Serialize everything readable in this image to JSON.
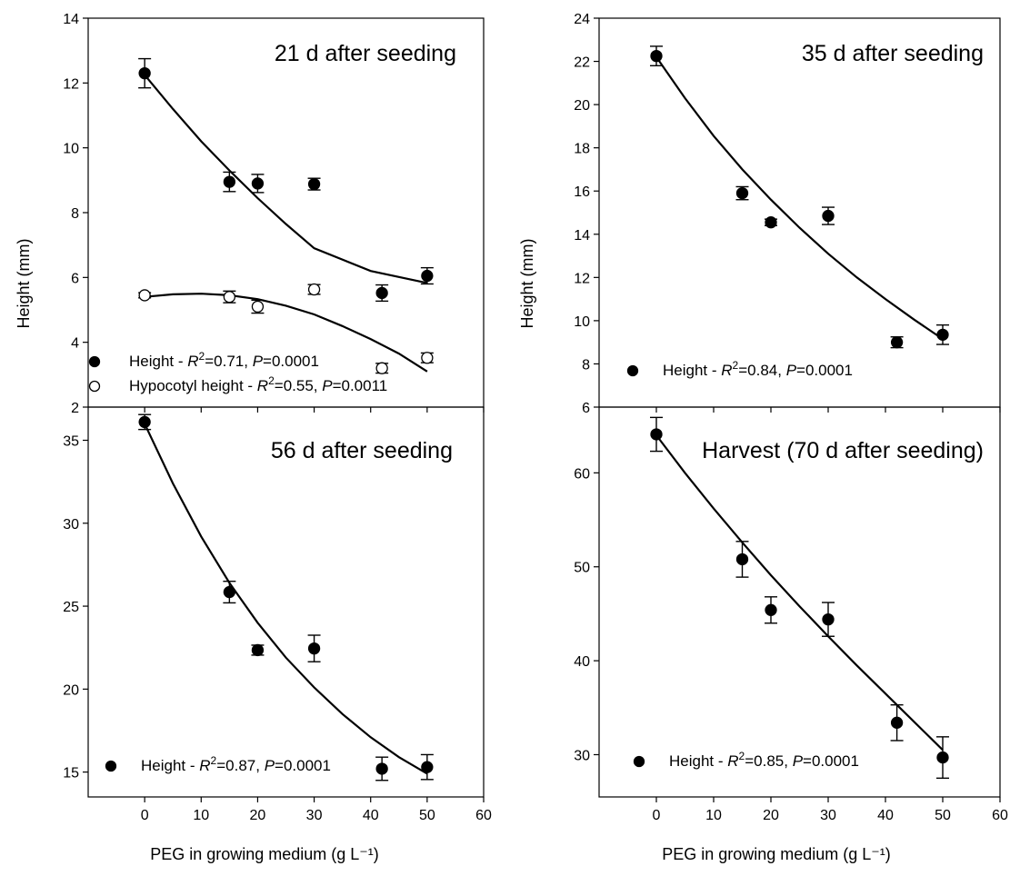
{
  "chart_data": [
    {
      "id": "p21",
      "type": "scatter",
      "title": "21 d after seeding",
      "ylabel": "Height (mm)",
      "xlim": [
        -10,
        60
      ],
      "ylim": [
        2,
        14
      ],
      "xticks": [
        0,
        10,
        20,
        30,
        40,
        50,
        60
      ],
      "yticks": [
        2,
        4,
        6,
        8,
        10,
        12,
        14
      ],
      "series": [
        {
          "name": "Height",
          "marker": "filled-circle",
          "x": [
            0,
            15,
            20,
            30,
            42,
            50
          ],
          "y": [
            12.3,
            8.95,
            8.9,
            8.88,
            5.52,
            6.05
          ],
          "err": [
            0.45,
            0.3,
            0.28,
            0.18,
            0.25,
            0.25
          ],
          "fit": [
            12.25,
            11.2,
            10.2,
            9.3,
            8.45,
            7.65,
            6.9,
            6.2,
            5.83
          ],
          "fit_x": [
            0,
            5,
            10,
            15,
            20,
            25,
            30,
            40,
            50
          ],
          "legend": {
            "label": "Height - ",
            "r2": "=0.71, ",
            "p": "=0.0001"
          }
        },
        {
          "name": "Hypocotyl height",
          "marker": "open-circle",
          "x": [
            0,
            15,
            20,
            30,
            42,
            50
          ],
          "y": [
            5.45,
            5.4,
            5.1,
            5.63,
            3.2,
            3.52
          ],
          "err": [
            0.08,
            0.18,
            0.2,
            0.15,
            0.15,
            0.15
          ],
          "fit_x": [
            0,
            5,
            10,
            15,
            20,
            25,
            30,
            35,
            40,
            45,
            50
          ],
          "fit": [
            5.4,
            5.48,
            5.5,
            5.45,
            5.33,
            5.13,
            4.86,
            4.5,
            4.1,
            3.65,
            3.1
          ],
          "legend": {
            "label": "Hypocotyl height - ",
            "r2": "=0.55, ",
            "p": "=0.0011"
          }
        }
      ]
    },
    {
      "id": "p35",
      "type": "scatter",
      "title": "35 d after seeding",
      "ylabel": "Height (mm)",
      "xlim": [
        -10,
        60
      ],
      "ylim": [
        6,
        24
      ],
      "xticks": [
        0,
        10,
        20,
        30,
        40,
        50,
        60
      ],
      "yticks": [
        6,
        8,
        10,
        12,
        14,
        16,
        18,
        20,
        22,
        24
      ],
      "series": [
        {
          "name": "Height",
          "marker": "filled-circle",
          "x": [
            0,
            15,
            20,
            30,
            42,
            50
          ],
          "y": [
            22.25,
            15.9,
            14.55,
            14.85,
            9.0,
            9.35
          ],
          "err": [
            0.45,
            0.3,
            0.15,
            0.4,
            0.25,
            0.45
          ],
          "fit_x": [
            0,
            5,
            10,
            15,
            20,
            25,
            30,
            35,
            40,
            45,
            50
          ],
          "fit": [
            22.2,
            20.3,
            18.55,
            17.0,
            15.6,
            14.3,
            13.1,
            12.0,
            11.0,
            10.05,
            9.15
          ],
          "legend": {
            "label": "Height - ",
            "r2": "=0.84, ",
            "p": "=0.0001"
          }
        }
      ]
    },
    {
      "id": "p56",
      "type": "scatter",
      "title": "56 d after seeding",
      "ylabel": "",
      "xlabel": "PEG in growing medium (g L⁻¹)",
      "xlim": [
        -10,
        60
      ],
      "ylim": [
        13.5,
        37
      ],
      "xticks": [
        0,
        10,
        20,
        30,
        40,
        50,
        60
      ],
      "yticks": [
        15,
        20,
        25,
        30,
        35
      ],
      "series": [
        {
          "name": "Height",
          "marker": "filled-circle",
          "x": [
            0,
            15,
            20,
            30,
            42,
            50
          ],
          "y": [
            36.1,
            25.85,
            22.35,
            22.45,
            15.2,
            15.3
          ],
          "err": [
            0.45,
            0.65,
            0.3,
            0.8,
            0.7,
            0.75
          ],
          "fit_x": [
            0,
            5,
            10,
            15,
            20,
            25,
            30,
            35,
            40,
            45,
            50
          ],
          "fit": [
            36.0,
            32.4,
            29.2,
            26.4,
            24.0,
            21.9,
            20.1,
            18.5,
            17.1,
            15.9,
            14.9
          ],
          "legend": {
            "label": "Height - ",
            "r2": "=0.87, ",
            "p": "=0.0001"
          }
        }
      ]
    },
    {
      "id": "p70",
      "type": "scatter",
      "title": "Harvest (70 d after seeding)",
      "ylabel": "",
      "xlabel": "PEG in growing medium (g L⁻¹)",
      "xlim": [
        -10,
        60
      ],
      "ylim": [
        25.5,
        67
      ],
      "xticks": [
        0,
        10,
        20,
        30,
        40,
        50,
        60
      ],
      "yticks": [
        30,
        40,
        50,
        60
      ],
      "series": [
        {
          "name": "Height",
          "marker": "filled-circle",
          "x": [
            0,
            15,
            20,
            30,
            42,
            50
          ],
          "y": [
            64.1,
            50.8,
            45.4,
            44.4,
            33.4,
            29.7
          ],
          "err": [
            1.8,
            1.9,
            1.4,
            1.8,
            1.9,
            2.2
          ],
          "fit_x": [
            0,
            5,
            10,
            15,
            20,
            25,
            30,
            35,
            40,
            45,
            50
          ],
          "fit": [
            64.0,
            60.0,
            56.2,
            52.6,
            49.1,
            45.8,
            42.6,
            39.5,
            36.5,
            33.5,
            30.5
          ],
          "legend": {
            "label": "Height - ",
            "r2": "=0.85, ",
            "p": "=0.0001"
          }
        }
      ]
    }
  ]
}
